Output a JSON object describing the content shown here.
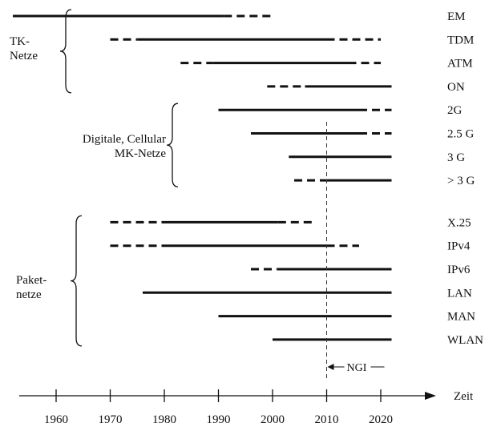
{
  "chart_data": {
    "type": "timeline",
    "axis": {
      "title": "Zeit",
      "ticks": [
        1960,
        1970,
        1980,
        1990,
        2000,
        2010,
        2020
      ],
      "range": [
        1952,
        2026
      ]
    },
    "reference_line": {
      "year": 2010,
      "label": "NGI"
    },
    "groups": [
      {
        "label_lines": [
          "TK-",
          "Netze"
        ],
        "rows": [
          0,
          3
        ]
      },
      {
        "label_lines": [
          "Digitale, Cellular",
          "MK-Netze"
        ],
        "rows": [
          4,
          7
        ]
      },
      {
        "label_lines": [
          "Paket-",
          "netze"
        ],
        "rows": [
          8,
          13
        ]
      }
    ],
    "technologies": [
      {
        "name": "EM",
        "dashed_start": null,
        "solid": [
          1952,
          1991
        ],
        "dashed_end": [
          1991,
          2000
        ]
      },
      {
        "name": "TDM",
        "dashed_start": [
          1970,
          1975
        ],
        "solid": [
          1975,
          2010
        ],
        "dashed_end": [
          2010,
          2020
        ]
      },
      {
        "name": "ATM",
        "dashed_start": [
          1983,
          1989
        ],
        "solid": [
          1989,
          2014
        ],
        "dashed_end": [
          2014,
          2020
        ]
      },
      {
        "name": "ON",
        "dashed_start": [
          1999,
          2006
        ],
        "solid": [
          2006,
          2022
        ],
        "dashed_end": null
      },
      {
        "name": "2G",
        "dashed_start": null,
        "solid": [
          1990,
          2016
        ],
        "dashed_end": [
          2016,
          2022
        ]
      },
      {
        "name": "2.5 G",
        "dashed_start": null,
        "solid": [
          1996,
          2016
        ],
        "dashed_end": [
          2016,
          2022
        ]
      },
      {
        "name": "3 G",
        "dashed_start": null,
        "solid": [
          2003,
          2022
        ],
        "dashed_end": null
      },
      {
        "name": "> 3 G",
        "dashed_start": [
          2004,
          2010
        ],
        "solid": [
          2010,
          2022
        ],
        "dashed_end": null
      },
      {
        "name": "X.25",
        "dashed_start": [
          1970,
          1980
        ],
        "solid": [
          1980,
          2001
        ],
        "dashed_end": [
          2001,
          2008
        ]
      },
      {
        "name": "IPv4",
        "dashed_start": [
          1970,
          1980
        ],
        "solid": [
          1980,
          2010
        ],
        "dashed_end": [
          2010,
          2016
        ]
      },
      {
        "name": "IPv6",
        "dashed_start": [
          1996,
          2001
        ],
        "solid": [
          2001,
          2022
        ],
        "dashed_end": null
      },
      {
        "name": "LAN",
        "dashed_start": null,
        "solid": [
          1976,
          2022
        ],
        "dashed_end": null
      },
      {
        "name": "MAN",
        "dashed_start": null,
        "solid": [
          1990,
          2022
        ],
        "dashed_end": null
      },
      {
        "name": "WLAN",
        "dashed_start": null,
        "solid": [
          2000,
          2022
        ],
        "dashed_end": null
      }
    ]
  }
}
